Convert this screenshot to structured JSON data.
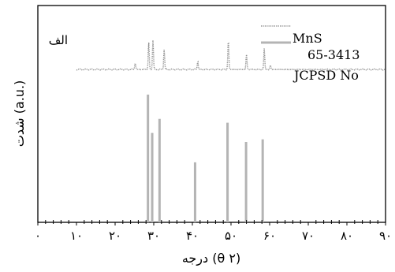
{
  "chart_data": {
    "type": "line",
    "panel_label": "الف",
    "ylabel": "شدت (a.u.)",
    "xlabel": "درجه (θ ۲)",
    "xlim": [
      0,
      90
    ],
    "x_ticks": [
      {
        "value": 0,
        "label": "۰"
      },
      {
        "value": 10,
        "label": "۱۰"
      },
      {
        "value": 20,
        "label": "۲۰"
      },
      {
        "value": 30,
        "label": "۳۰"
      },
      {
        "value": 40,
        "label": "۴۰"
      },
      {
        "value": 50,
        "label": "۵۰"
      },
      {
        "value": 60,
        "label": "۶۰"
      },
      {
        "value": 70,
        "label": "۷۰"
      },
      {
        "value": 80,
        "label": "۸۰"
      },
      {
        "value": 90,
        "label": "۹۰"
      }
    ],
    "legend": [
      {
        "label": "MnS",
        "style": "dotted",
        "color": "#8c8c8c"
      },
      {
        "label": "JCPSD No 65-3413",
        "style": "solid",
        "color": "#b4b4b4"
      }
    ],
    "series": [
      {
        "name": "MnS",
        "style": "dotted",
        "color": "#8c8c8c",
        "baseline": 0.1,
        "x_range": [
          10,
          90
        ],
        "peaks": [
          {
            "x": 25.2,
            "y": 1.0
          },
          {
            "x": 28.7,
            "y": 3.9
          },
          {
            "x": 29.8,
            "y": 4.2
          },
          {
            "x": 32.7,
            "y": 2.9
          },
          {
            "x": 41.4,
            "y": 1.2
          },
          {
            "x": 49.3,
            "y": 4.3
          },
          {
            "x": 54.0,
            "y": 2.2
          },
          {
            "x": 58.6,
            "y": 3.0
          },
          {
            "x": 60.2,
            "y": 0.6
          }
        ]
      },
      {
        "name": "JCPSD No 65-3413",
        "style": "stick",
        "color": "#b4b4b4",
        "x": [
          28.5,
          29.6,
          31.5,
          40.7,
          49.1,
          53.9,
          58.2
        ],
        "y": [
          100,
          70,
          81,
          47,
          78,
          63,
          65
        ]
      }
    ]
  }
}
